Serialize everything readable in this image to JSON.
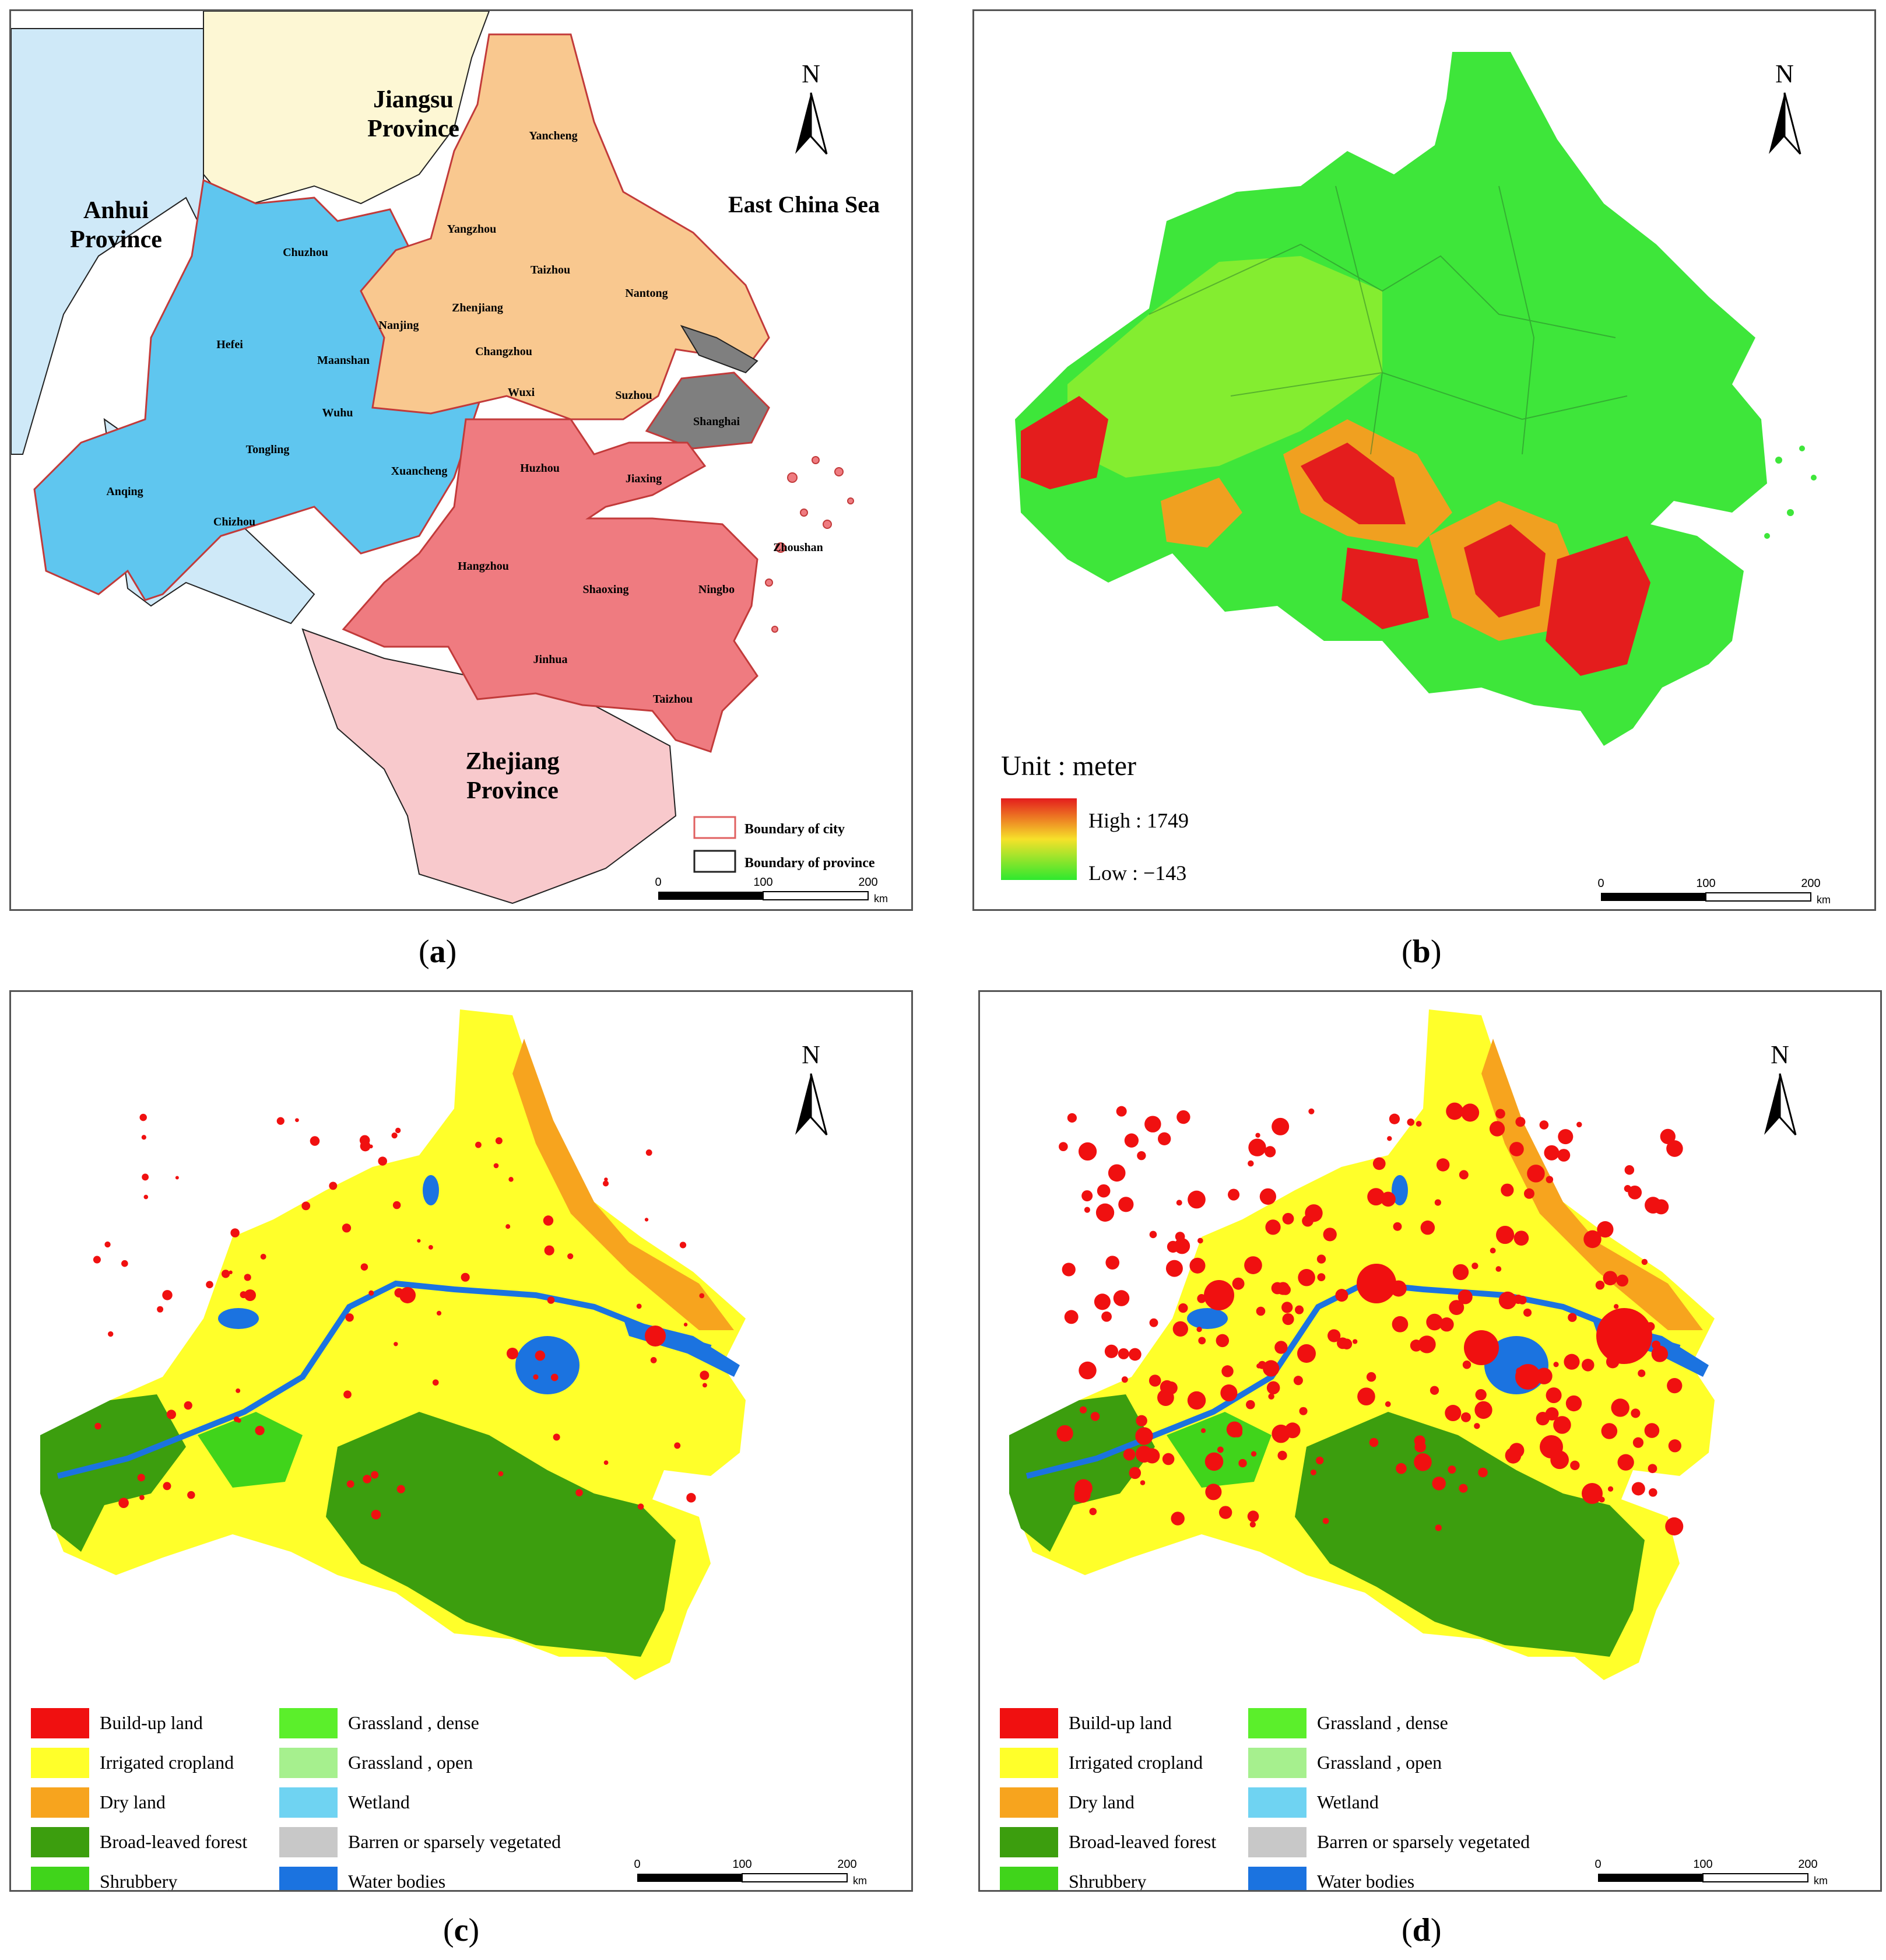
{
  "panel_a": {
    "provinces": {
      "jiangsu": "Jiangsu Province",
      "anhui": "Anhui Province",
      "zhejiang": "Zhejiang Province"
    },
    "sea_label": "East China Sea",
    "cities": [
      "Yancheng",
      "Yangzhou",
      "Taizhou",
      "Nantong",
      "Chuzhou",
      "Nanjing",
      "Zhenjiang",
      "Changzhou",
      "Wuxi",
      "Suzhou",
      "Hefei",
      "Maanshan",
      "Wuhu",
      "Tongling",
      "Anqing",
      "Chizhou",
      "Xuancheng",
      "Shanghai",
      "Huzhou",
      "Jiaxing",
      "Hangzhou",
      "Shaoxing",
      "Ningbo",
      "Zhoushan",
      "Jinhua",
      "Taizhou"
    ],
    "legend": {
      "city": "Boundary of city",
      "province": "Boundary of province"
    },
    "colors": {
      "jiangsu_cities": "#f9c88f",
      "anhui_cities": "#5fc6ef",
      "zhejiang_cities": "#ef7b80",
      "shanghai": "#7f7f7f",
      "jiangsu_province": "#fdf7d4",
      "anhui_province": "#cfe9f8",
      "zhejiang_province": "#f8c9cc"
    }
  },
  "panel_b": {
    "unit": "Unit : meter",
    "high": "High : 1749",
    "low": "Low : −143",
    "colors": {
      "high": "#e41d1d",
      "mid": "#f6e12a",
      "low": "#2ee82e"
    }
  },
  "landcover_legend": [
    {
      "label": "Build-up land",
      "color": "#f01010"
    },
    {
      "label": "Irrigated cropland",
      "color": "#ffff2a"
    },
    {
      "label": "Dry land",
      "color": "#f7a41e"
    },
    {
      "label": "Broad-leaved forest",
      "color": "#3c9e0e"
    },
    {
      "label": "Shrubbery",
      "color": "#40d41b"
    },
    {
      "label": "Grassland , dense",
      "color": "#5bef2b"
    },
    {
      "label": "Grassland , open",
      "color": "#a6f08e"
    },
    {
      "label": "Wetland",
      "color": "#6fd3f2"
    },
    {
      "label": "Barren or sparsely vegetated",
      "color": "#c8c8c8"
    },
    {
      "label": "Water bodies",
      "color": "#1b73e0"
    }
  ],
  "north": "N",
  "scalebar": {
    "t0": "0",
    "t1": "100",
    "t2": "200",
    "unit": "km"
  },
  "captions": {
    "a": "a",
    "b": "b",
    "c": "c",
    "d": "d"
  }
}
